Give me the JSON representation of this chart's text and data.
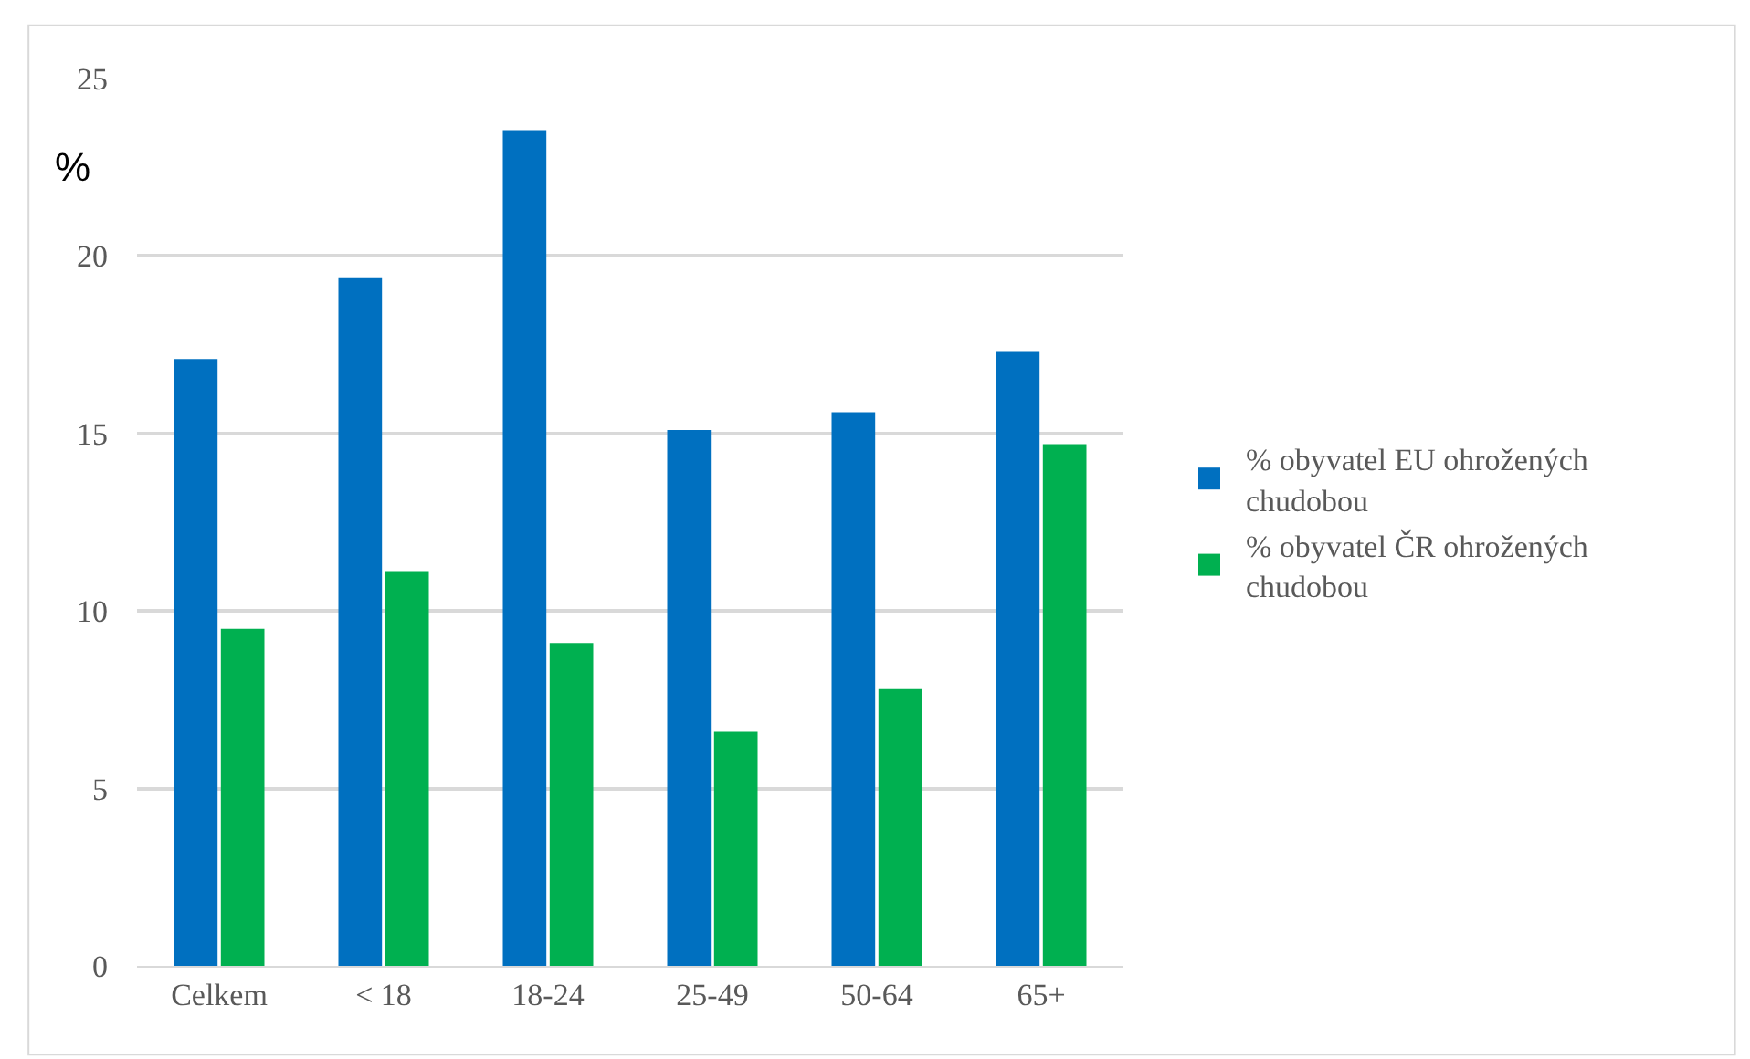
{
  "chart_data": {
    "type": "bar",
    "ylabel": "%",
    "categories": [
      "Celkem",
      "< 18",
      "18-24",
      "25-49",
      "50-64",
      "65+"
    ],
    "series": [
      {
        "name": "% obyvatel EU ohrožených chudobou",
        "color": "#0070c0",
        "values": [
          17.1,
          19.4,
          23.55,
          15.1,
          15.6,
          17.3
        ]
      },
      {
        "name": "% obyvatel ČR ohrožených chudobou",
        "color": "#00b050",
        "values": [
          9.5,
          11.1,
          9.1,
          6.6,
          7.8,
          14.7
        ]
      }
    ],
    "ylim": [
      0,
      25
    ],
    "yticks": [
      0,
      5,
      10,
      15,
      20,
      25
    ],
    "grid": "y",
    "legend": "right"
  }
}
